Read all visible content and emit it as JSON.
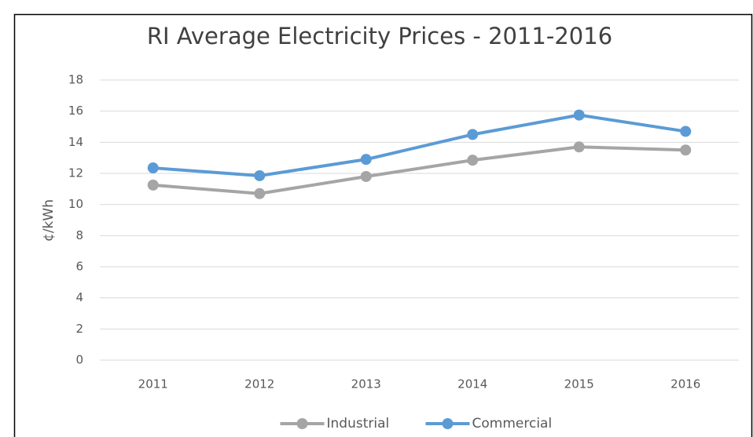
{
  "chart_data": {
    "type": "line",
    "title": "RI Average Electricity Prices - 2011-2016",
    "y_label": "¢/kWh",
    "categories": [
      "2011",
      "2012",
      "2013",
      "2014",
      "2015",
      "2016"
    ],
    "series": [
      {
        "name": "Industrial",
        "color": "#a5a5a5",
        "values": [
          11.25,
          10.7,
          11.8,
          12.85,
          13.7,
          13.5
        ]
      },
      {
        "name": "Commercial",
        "color": "#5b9bd5",
        "values": [
          12.35,
          11.85,
          12.9,
          14.5,
          15.75,
          14.7
        ]
      }
    ],
    "ylim": [
      0,
      18
    ],
    "yticks": [
      0,
      2,
      4,
      6,
      8,
      10,
      12,
      14,
      16,
      18
    ],
    "grid": true,
    "legend": "bottom"
  }
}
